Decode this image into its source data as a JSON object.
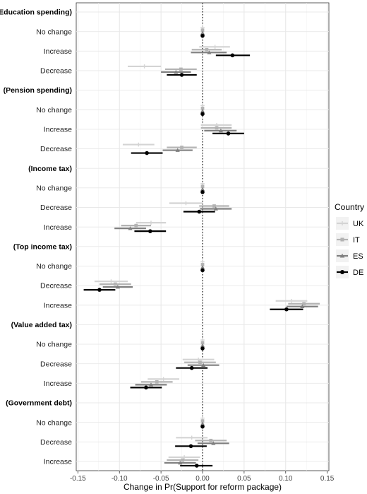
{
  "chart_data": {
    "type": "scatter",
    "title": "",
    "xlabel": "Change in Pr(Support for reform package)",
    "ylabel": "",
    "xlim": [
      -0.152,
      0.152
    ],
    "xticks": [
      -0.15,
      -0.1,
      -0.05,
      0.0,
      0.05,
      0.1,
      0.15
    ],
    "xtick_labels": [
      "-0.15",
      "-0.10",
      "-0.05",
      "0.00",
      "0.05",
      "0.10",
      "0.15"
    ],
    "reference_line": 0.0,
    "grid": true,
    "legend": {
      "title": "Country",
      "placement": "right",
      "entries": [
        {
          "name": "UK",
          "color": "#d4d4d4",
          "marker": "plus"
        },
        {
          "name": "IT",
          "color": "#b3b3b3",
          "marker": "square"
        },
        {
          "name": "ES",
          "color": "#808080",
          "marker": "triangle"
        },
        {
          "name": "DE",
          "color": "#000000",
          "marker": "circle"
        }
      ]
    },
    "rows": [
      {
        "label": "(Education spending)",
        "group": true
      },
      {
        "label": "No change",
        "est": [
          0.0,
          0.0,
          0.0,
          0.0
        ],
        "lo": [
          0.0,
          0.0,
          0.0,
          0.0
        ],
        "hi": [
          0.0,
          0.0,
          0.0,
          0.0
        ]
      },
      {
        "label": "Increase",
        "est": [
          0.015,
          0.005,
          0.008,
          0.036
        ],
        "lo": [
          -0.004,
          -0.013,
          -0.014,
          0.016
        ],
        "hi": [
          0.033,
          0.023,
          0.029,
          0.057
        ]
      },
      {
        "label": "Decrease",
        "est": [
          -0.07,
          -0.026,
          -0.032,
          -0.025
        ],
        "lo": [
          -0.09,
          -0.045,
          -0.05,
          -0.043
        ],
        "hi": [
          -0.05,
          -0.007,
          -0.014,
          -0.007
        ]
      },
      {
        "label": "(Pension spending)",
        "group": true
      },
      {
        "label": "No change",
        "est": [
          0.0,
          0.0,
          0.0,
          0.0
        ],
        "lo": [
          0.0,
          0.0,
          0.0,
          0.0
        ],
        "hi": [
          0.0,
          0.0,
          0.0,
          0.0
        ]
      },
      {
        "label": "Increase",
        "est": [
          0.017,
          0.017,
          0.022,
          0.031
        ],
        "lo": [
          -0.002,
          -0.002,
          0.002,
          0.012
        ],
        "hi": [
          0.035,
          0.035,
          0.041,
          0.05
        ]
      },
      {
        "label": "Decrease",
        "est": [
          -0.077,
          -0.025,
          -0.03,
          -0.067
        ],
        "lo": [
          -0.096,
          -0.043,
          -0.048,
          -0.086
        ],
        "hi": [
          -0.058,
          -0.007,
          -0.012,
          -0.048
        ]
      },
      {
        "label": "(Income tax)",
        "group": true
      },
      {
        "label": "No change",
        "est": [
          0.0,
          0.0,
          0.0,
          0.0
        ],
        "lo": [
          0.0,
          0.0,
          0.0,
          0.0
        ],
        "hi": [
          0.0,
          0.0,
          0.0,
          0.0
        ]
      },
      {
        "label": "Decrease",
        "est": [
          -0.02,
          0.014,
          0.016,
          -0.004
        ],
        "lo": [
          -0.04,
          -0.004,
          -0.003,
          -0.023
        ],
        "hi": [
          0.0,
          0.032,
          0.035,
          0.015
        ]
      },
      {
        "label": "Increase",
        "est": [
          -0.062,
          -0.08,
          -0.087,
          -0.063
        ],
        "lo": [
          -0.08,
          -0.098,
          -0.106,
          -0.082
        ],
        "hi": [
          -0.044,
          -0.062,
          -0.068,
          -0.044
        ]
      },
      {
        "label": "(Top income tax)",
        "group": true
      },
      {
        "label": "No change",
        "est": [
          0.0,
          0.0,
          0.0,
          0.0
        ],
        "lo": [
          0.0,
          0.0,
          0.0,
          0.0
        ],
        "hi": [
          0.0,
          0.0,
          0.0,
          0.0
        ]
      },
      {
        "label": "Decrease",
        "est": [
          -0.11,
          -0.105,
          -0.102,
          -0.124
        ],
        "lo": [
          -0.13,
          -0.124,
          -0.12,
          -0.143
        ],
        "hi": [
          -0.09,
          -0.086,
          -0.084,
          -0.105
        ]
      },
      {
        "label": "Increase",
        "est": [
          0.107,
          0.122,
          0.12,
          0.101
        ],
        "lo": [
          0.088,
          0.103,
          0.101,
          0.081
        ],
        "hi": [
          0.126,
          0.141,
          0.139,
          0.121
        ]
      },
      {
        "label": "(Value added tax)",
        "group": true
      },
      {
        "label": "No change",
        "est": [
          0.0,
          0.0,
          0.0,
          0.0
        ],
        "lo": [
          0.0,
          0.0,
          0.0,
          0.0
        ],
        "hi": [
          0.0,
          0.0,
          0.0,
          0.0
        ]
      },
      {
        "label": "Decrease",
        "est": [
          -0.005,
          -0.003,
          0.001,
          -0.013
        ],
        "lo": [
          -0.024,
          -0.022,
          -0.018,
          -0.032
        ],
        "hi": [
          0.014,
          0.016,
          0.02,
          0.006
        ]
      },
      {
        "label": "Increase",
        "est": [
          -0.047,
          -0.055,
          -0.062,
          -0.068
        ],
        "lo": [
          -0.066,
          -0.074,
          -0.081,
          -0.087
        ],
        "hi": [
          -0.028,
          -0.036,
          -0.043,
          -0.049
        ]
      },
      {
        "label": "(Government debt)",
        "group": true
      },
      {
        "label": "No change",
        "est": [
          0.0,
          0.0,
          0.0,
          0.0
        ],
        "lo": [
          0.0,
          0.0,
          0.0,
          0.0
        ],
        "hi": [
          0.0,
          0.0,
          0.0,
          0.0
        ]
      },
      {
        "label": "Decrease",
        "est": [
          -0.013,
          0.01,
          0.013,
          -0.014
        ],
        "lo": [
          -0.032,
          -0.009,
          -0.006,
          -0.033
        ],
        "hi": [
          0.006,
          0.029,
          0.032,
          0.005
        ]
      },
      {
        "label": "Increase",
        "est": [
          -0.022,
          -0.024,
          -0.027,
          -0.007
        ],
        "lo": [
          -0.041,
          -0.043,
          -0.046,
          -0.027
        ],
        "hi": [
          -0.003,
          -0.005,
          -0.008,
          0.012
        ]
      }
    ]
  }
}
